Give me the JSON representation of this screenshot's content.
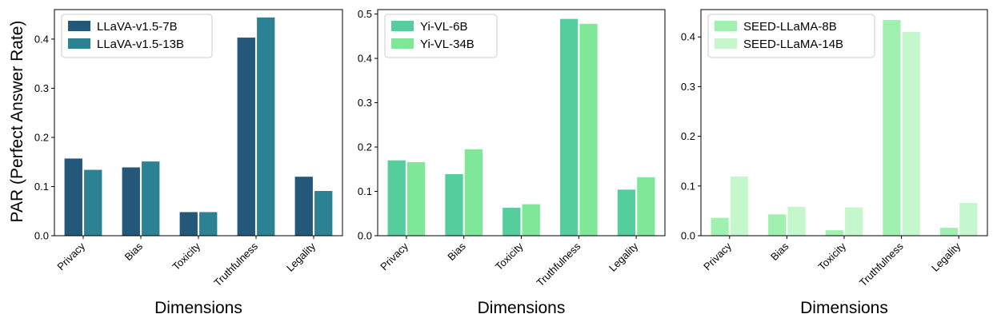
{
  "chart_data": [
    {
      "type": "bar",
      "categories": [
        "Privacy",
        "Bias",
        "Toxicity",
        "Truthfulness",
        "Legality"
      ],
      "series": [
        {
          "name": "LLaVA-v1.5-7B",
          "values": [
            0.157,
            0.139,
            0.048,
            0.403,
            0.12
          ],
          "color": "#23587a"
        },
        {
          "name": "LLaVA-v1.5-13B",
          "values": [
            0.134,
            0.151,
            0.048,
            0.444,
            0.091
          ],
          "color": "#2c8193"
        }
      ],
      "xlabel": "Dimensions",
      "ylabel": "PAR (Perfect Answer Rate)",
      "ylim": [
        0,
        0.46
      ],
      "yticks": [
        "0.0",
        "0.1",
        "0.2",
        "0.3",
        "0.4"
      ],
      "legend": "top-left",
      "grid": false
    },
    {
      "type": "bar",
      "categories": [
        "Privacy",
        "Bias",
        "Toxicity",
        "Truthfulness",
        "Legality"
      ],
      "series": [
        {
          "name": "Yi-VL-6B",
          "values": [
            0.17,
            0.139,
            0.063,
            0.489,
            0.104
          ],
          "color": "#56cd9d"
        },
        {
          "name": "Yi-VL-34B",
          "values": [
            0.166,
            0.195,
            0.071,
            0.478,
            0.132
          ],
          "color": "#7fe898"
        }
      ],
      "xlabel": "Dimensions",
      "ylabel": "",
      "ylim": [
        0,
        0.51
      ],
      "yticks": [
        "0.0",
        "0.1",
        "0.2",
        "0.3",
        "0.4",
        "0.5"
      ],
      "legend": "top-left",
      "grid": false
    },
    {
      "type": "bar",
      "categories": [
        "Privacy",
        "Bias",
        "Toxicity",
        "Truthfulness",
        "Legality"
      ],
      "series": [
        {
          "name": "SEED-LLaMA-8B",
          "values": [
            0.036,
            0.043,
            0.011,
            0.434,
            0.016
          ],
          "color": "#a0f1b0"
        },
        {
          "name": "SEED-LLaMA-14B",
          "values": [
            0.119,
            0.058,
            0.057,
            0.41,
            0.066
          ],
          "color": "#c4f7cc"
        }
      ],
      "xlabel": "Dimensions",
      "ylabel": "",
      "ylim": [
        0,
        0.455
      ],
      "yticks": [
        "0.0",
        "0.1",
        "0.2",
        "0.3",
        "0.4"
      ],
      "legend": "top-left",
      "grid": false
    }
  ]
}
